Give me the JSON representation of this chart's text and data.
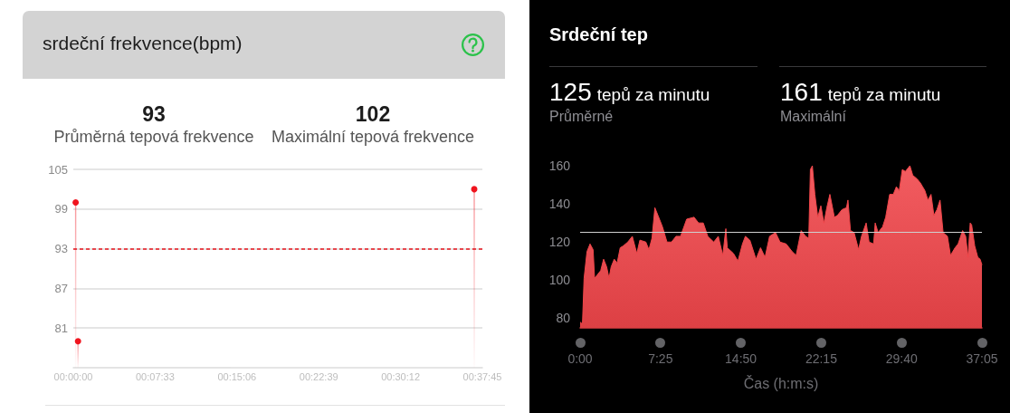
{
  "chart_data": [
    {
      "type": "lollipop",
      "title": "srdeční frekvence(bpm)",
      "annotations": [
        "93",
        "Průměrná tepová frekvence",
        "102",
        "Maximální tepová frekvence"
      ],
      "x": [
        13,
        26,
        2220
      ],
      "values": [
        100,
        79,
        102
      ],
      "color": "#f0141e",
      "xlim": [
        0,
        2265
      ],
      "xticks": [
        {
          "value": 0,
          "label": "00:00:00"
        },
        {
          "value": 453,
          "label": "00:07:33"
        },
        {
          "value": 906,
          "label": "00:15:06"
        },
        {
          "value": 1359,
          "label": "00:22:39"
        },
        {
          "value": 1812,
          "label": "00:30:12"
        },
        {
          "value": 2265,
          "label": "00:37:45"
        }
      ],
      "ylim": [
        75,
        105
      ],
      "yticks": [
        81,
        87,
        93,
        99,
        105
      ],
      "grid": "y",
      "marker": "circle",
      "ref_lines": [
        {
          "axis": "y",
          "value": 93,
          "color": "#e8141c",
          "line_style": "dashed"
        }
      ]
    },
    {
      "type": "area",
      "title": "Srdeční tep",
      "xlabel": "Čas (h:m:s)",
      "annotations": [
        "125",
        "tepů za minutu",
        "Průměrné",
        "161",
        "tepů za minutu",
        "Maximální"
      ],
      "x": [
        0,
        13,
        22,
        38,
        55,
        72,
        80,
        97,
        114,
        130,
        147,
        160,
        172,
        189,
        205,
        222,
        239,
        264,
        289,
        314,
        331,
        364,
        381,
        398,
        414,
        431,
        456,
        481,
        506,
        531,
        556,
        590,
        631,
        656,
        682,
        707,
        740,
        765,
        790,
        807,
        815,
        849,
        874,
        899,
        915,
        940,
        974,
        999,
        1024,
        1049,
        1082,
        1107,
        1141,
        1174,
        1196,
        1224,
        1249,
        1266,
        1275,
        1286,
        1300,
        1316,
        1333,
        1350,
        1366,
        1383,
        1408,
        1425,
        1450,
        1475,
        1483,
        1497,
        1517,
        1542,
        1558,
        1584,
        1600,
        1625,
        1634,
        1650,
        1675,
        1692,
        1714,
        1734,
        1751,
        1767,
        1784,
        1801,
        1826,
        1842,
        1867,
        1884,
        1909,
        1926,
        1943,
        1959,
        1976,
        1993,
        2010,
        2034,
        2051,
        2076,
        2093,
        2118,
        2135,
        2148,
        2160,
        2168,
        2185,
        2202,
        2215,
        2225
      ],
      "values": [
        78,
        77,
        101,
        115,
        119,
        116,
        101,
        103,
        105,
        111,
        107,
        101,
        107,
        111,
        109,
        117,
        118,
        120,
        123,
        114,
        121,
        120,
        116,
        122,
        138,
        134,
        128,
        120,
        120,
        123,
        123,
        132,
        133,
        130,
        130,
        123,
        120,
        123,
        113,
        127,
        117,
        114,
        110,
        119,
        123,
        121,
        111,
        117,
        112,
        123,
        125,
        120,
        119,
        115,
        113,
        126,
        123,
        122,
        158,
        160,
        145,
        133,
        139,
        130,
        138,
        145,
        133,
        134,
        137,
        138,
        142,
        126,
        125,
        116,
        123,
        130,
        120,
        119,
        130,
        125,
        128,
        133,
        145,
        145,
        149,
        147,
        158,
        157,
        160,
        155,
        153,
        151,
        147,
        142,
        145,
        134,
        137,
        142,
        125,
        123,
        113,
        117,
        119,
        126,
        123,
        112,
        130,
        129,
        118,
        112,
        111,
        108
      ],
      "color": "#f0464a",
      "xlim": [
        0,
        2225
      ],
      "xticks": [
        {
          "value": 0,
          "label": "0:00"
        },
        {
          "value": 445,
          "label": "7:25"
        },
        {
          "value": 890,
          "label": "14:50"
        },
        {
          "value": 1335,
          "label": "22:15"
        },
        {
          "value": 1780,
          "label": "29:40"
        },
        {
          "value": 2225,
          "label": "37:05"
        }
      ],
      "ylim": [
        75,
        160
      ],
      "yticks": [
        80,
        100,
        120,
        140,
        160
      ],
      "marker": "none",
      "ref_lines": [
        {
          "axis": "y",
          "value": 125,
          "color": "#cfcfcf",
          "line_style": "solid"
        }
      ]
    }
  ]
}
